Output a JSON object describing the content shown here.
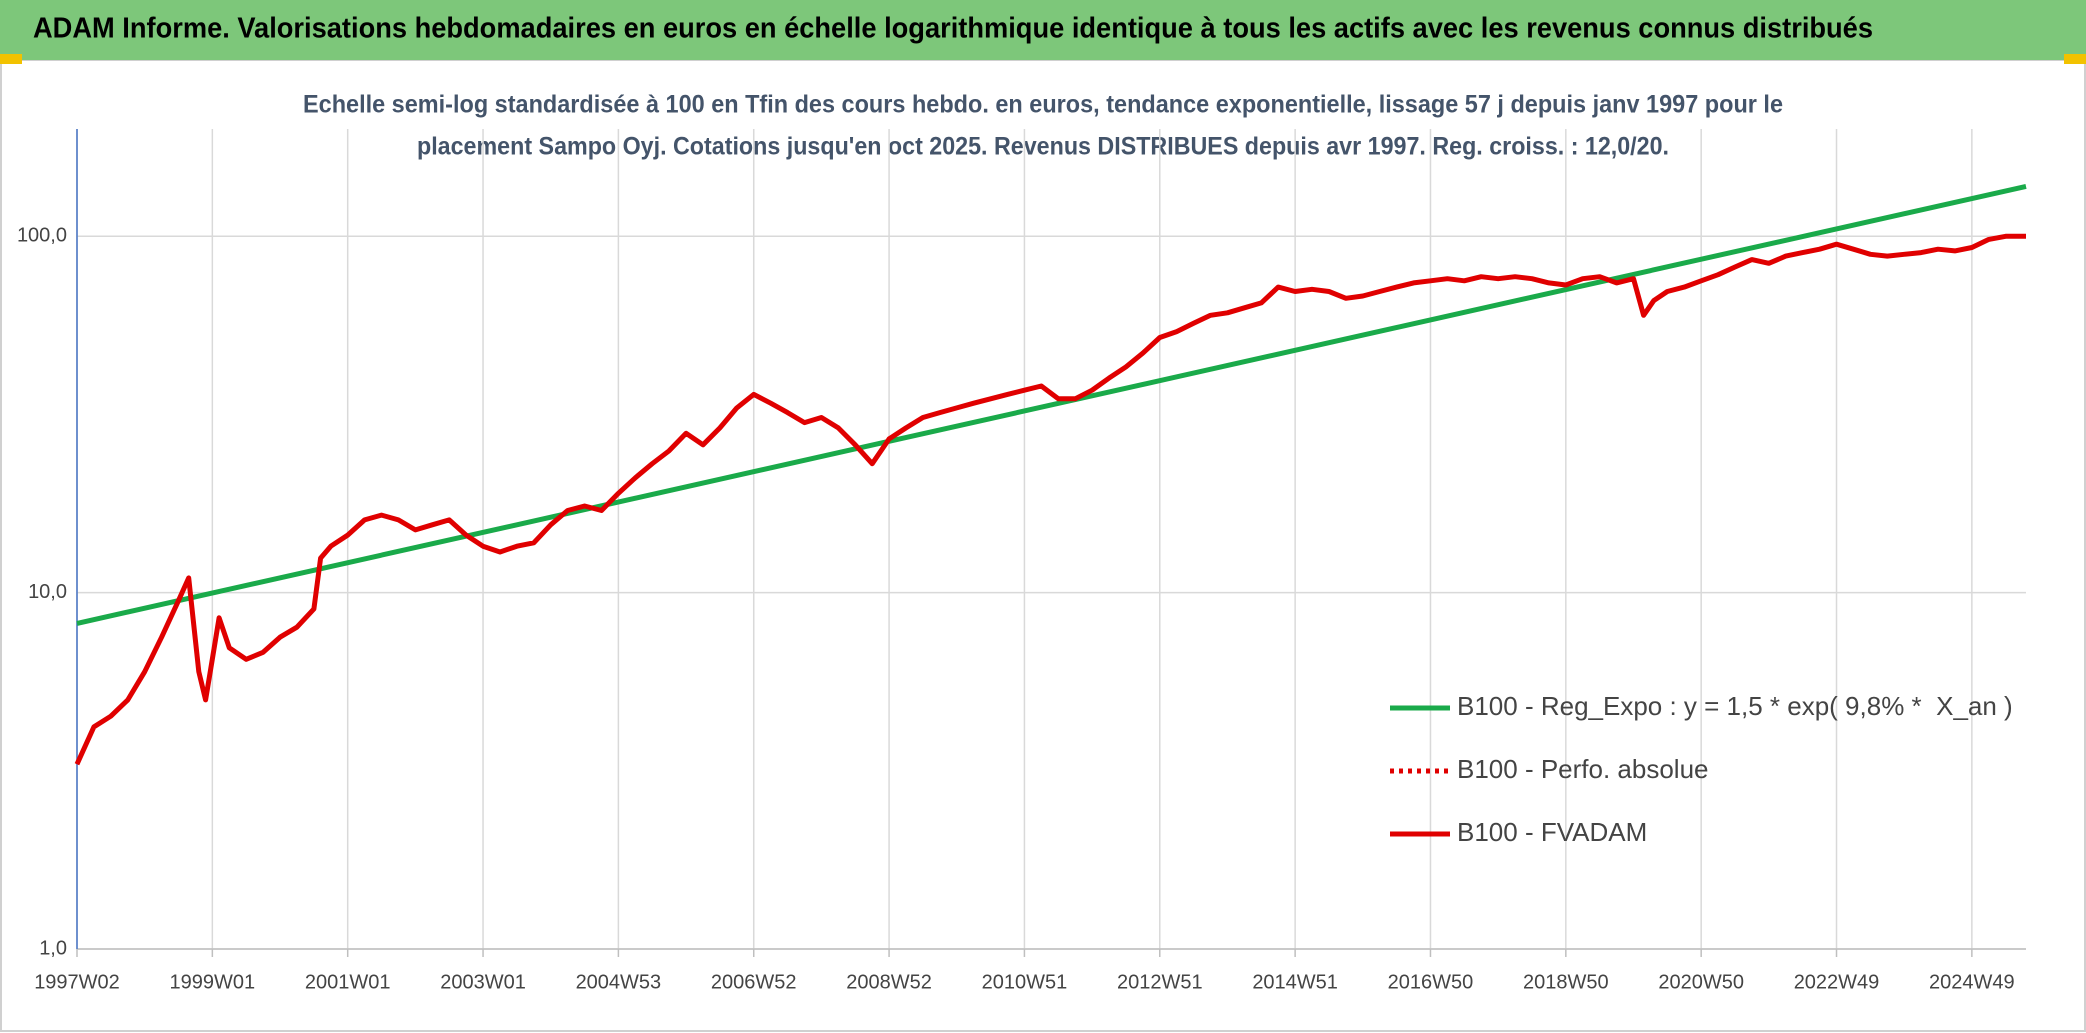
{
  "chart_data": {
    "type": "line",
    "title": "ADAM Informe. Valorisations hebdomadaires en euros en échelle logarithmique identique à tous les actifs avec les revenus connus distribués",
    "subtitle": [
      "Echelle semi-log standardisée à 100 en Tfin des cours hebdo. en euros, tendance exponentielle, lissage 57 j depuis janv 1997 pour le",
      "placement Sampo Oyj. Cotations jusqu'en oct 2025. Revenus DISTRIBUES depuis avr 1997. Reg. croiss. : 12,0/20."
    ],
    "log_scale": true,
    "grid": true,
    "legend": "right",
    "xlim": [
      1997.0,
      2025.8
    ],
    "xticks": [
      {
        "value": 1997.0,
        "label": "1997W02"
      },
      {
        "value": 1999.0,
        "label": "1999W01"
      },
      {
        "value": 2001.0,
        "label": "2001W01"
      },
      {
        "value": 2003.0,
        "label": "2003W01"
      },
      {
        "value": 2005.0,
        "label": "2004W53"
      },
      {
        "value": 2007.0,
        "label": "2006W52"
      },
      {
        "value": 2009.0,
        "label": "2008W52"
      },
      {
        "value": 2011.0,
        "label": "2010W51"
      },
      {
        "value": 2013.0,
        "label": "2012W51"
      },
      {
        "value": 2015.0,
        "label": "2014W51"
      },
      {
        "value": 2017.0,
        "label": "2016W50"
      },
      {
        "value": 2019.0,
        "label": "2018W50"
      },
      {
        "value": 2021.0,
        "label": "2020W50"
      },
      {
        "value": 2023.0,
        "label": "2022W49"
      },
      {
        "value": 2025.0,
        "label": "2024W49"
      }
    ],
    "ylim": [
      1,
      200
    ],
    "yticks": [
      {
        "value": 1,
        "label": "1,0"
      },
      {
        "value": 10,
        "label": "10,0"
      },
      {
        "value": 100,
        "label": "100,0"
      }
    ],
    "series": [
      {
        "name": "B100 - Reg_Expo : y = 1,5 * exp( 9,8% *  X_an )",
        "color": "#1aaa4a",
        "style": "solid",
        "x": [
          1997.0,
          2025.8
        ],
        "values": [
          8.2,
          138
        ]
      },
      {
        "name": "B100 - Perfo. absolue",
        "color": "#e00000",
        "style": "dotted",
        "x": [
          1997.0,
          1997.25,
          1997.5,
          1997.75,
          1998.0,
          1998.25,
          1998.5,
          1998.65,
          1998.8,
          1998.9,
          1999.0,
          1999.1,
          1999.25,
          1999.5,
          1999.75,
          2000.0,
          2000.25,
          2000.5,
          2000.6,
          2000.75,
          2001.0,
          2001.25,
          2001.5,
          2001.75,
          2002.0,
          2002.25,
          2002.5,
          2002.75,
          2003.0,
          2003.25,
          2003.5,
          2003.75,
          2004.0,
          2004.25,
          2004.5,
          2004.75,
          2005.0,
          2005.25,
          2005.5,
          2005.75,
          2006.0,
          2006.25,
          2006.5,
          2006.75,
          2007.0,
          2007.25,
          2007.5,
          2007.75,
          2008.0,
          2008.25,
          2008.5,
          2008.75,
          2009.0,
          2009.25,
          2009.5,
          2009.75,
          2010.0,
          2010.25,
          2010.5,
          2010.75,
          2011.0,
          2011.25,
          2011.5,
          2011.75,
          2012.0,
          2012.25,
          2012.5,
          2012.75,
          2013.0,
          2013.25,
          2013.5,
          2013.75,
          2014.0,
          2014.25,
          2014.5,
          2014.75,
          2015.0,
          2015.25,
          2015.5,
          2015.75,
          2016.0,
          2016.25,
          2016.5,
          2016.75,
          2017.0,
          2017.25,
          2017.5,
          2017.75,
          2018.0,
          2018.25,
          2018.5,
          2018.75,
          2019.0,
          2019.25,
          2019.5,
          2019.75,
          2020.0,
          2020.15,
          2020.3,
          2020.5,
          2020.75,
          2021.0,
          2021.25,
          2021.5,
          2021.75,
          2022.0,
          2022.25,
          2022.5,
          2022.75,
          2023.0,
          2023.25,
          2023.5,
          2023.75,
          2024.0,
          2024.25,
          2024.5,
          2024.75,
          2025.0,
          2025.25,
          2025.5,
          2025.8
        ],
        "values": [
          3.3,
          4.2,
          4.5,
          5.0,
          6.0,
          7.5,
          9.5,
          11,
          6.0,
          5.0,
          6.5,
          8.5,
          7.0,
          6.5,
          6.8,
          7.5,
          8.0,
          9.0,
          12.5,
          13.5,
          14.5,
          16,
          16.5,
          16,
          15,
          15.5,
          16,
          14.5,
          13.5,
          13,
          13.5,
          13.8,
          15.5,
          17,
          17.5,
          17,
          19,
          21,
          23,
          25,
          28,
          26,
          29,
          33,
          36,
          34,
          32,
          30,
          31,
          29,
          26,
          23,
          27,
          29,
          31,
          32,
          33,
          34,
          35,
          36,
          37,
          38,
          35,
          35,
          37,
          40,
          43,
          47,
          52,
          54,
          57,
          60,
          61,
          63,
          65,
          72,
          70,
          71,
          70,
          67,
          68,
          70,
          72,
          74,
          75,
          76,
          75,
          77,
          76,
          77,
          76,
          74,
          73,
          76,
          77,
          74,
          76,
          60,
          66,
          70,
          72,
          75,
          78,
          82,
          86,
          84,
          88,
          90,
          92,
          95,
          92,
          89,
          88,
          89,
          90,
          92,
          91,
          93,
          98,
          100,
          100
        ]
      },
      {
        "name": "B100 - FVADAM",
        "color": "#e00000",
        "style": "solid",
        "x": [
          1997.0,
          1997.25,
          1997.5,
          1997.75,
          1998.0,
          1998.25,
          1998.5,
          1998.65,
          1998.8,
          1998.9,
          1999.0,
          1999.1,
          1999.25,
          1999.5,
          1999.75,
          2000.0,
          2000.25,
          2000.5,
          2000.6,
          2000.75,
          2001.0,
          2001.25,
          2001.5,
          2001.75,
          2002.0,
          2002.25,
          2002.5,
          2002.75,
          2003.0,
          2003.25,
          2003.5,
          2003.75,
          2004.0,
          2004.25,
          2004.5,
          2004.75,
          2005.0,
          2005.25,
          2005.5,
          2005.75,
          2006.0,
          2006.25,
          2006.5,
          2006.75,
          2007.0,
          2007.25,
          2007.5,
          2007.75,
          2008.0,
          2008.25,
          2008.5,
          2008.75,
          2009.0,
          2009.25,
          2009.5,
          2009.75,
          2010.0,
          2010.25,
          2010.5,
          2010.75,
          2011.0,
          2011.25,
          2011.5,
          2011.75,
          2012.0,
          2012.25,
          2012.5,
          2012.75,
          2013.0,
          2013.25,
          2013.5,
          2013.75,
          2014.0,
          2014.25,
          2014.5,
          2014.75,
          2015.0,
          2015.25,
          2015.5,
          2015.75,
          2016.0,
          2016.25,
          2016.5,
          2016.75,
          2017.0,
          2017.25,
          2017.5,
          2017.75,
          2018.0,
          2018.25,
          2018.5,
          2018.75,
          2019.0,
          2019.25,
          2019.5,
          2019.75,
          2020.0,
          2020.15,
          2020.3,
          2020.5,
          2020.75,
          2021.0,
          2021.25,
          2021.5,
          2021.75,
          2022.0,
          2022.25,
          2022.5,
          2022.75,
          2023.0,
          2023.25,
          2023.5,
          2023.75,
          2024.0,
          2024.25,
          2024.5,
          2024.75,
          2025.0,
          2025.25,
          2025.5,
          2025.8
        ],
        "values": [
          3.3,
          4.2,
          4.5,
          5.0,
          6.0,
          7.5,
          9.5,
          11,
          6.0,
          5.0,
          6.5,
          8.5,
          7.0,
          6.5,
          6.8,
          7.5,
          8.0,
          9.0,
          12.5,
          13.5,
          14.5,
          16,
          16.5,
          16,
          15,
          15.5,
          16,
          14.5,
          13.5,
          13,
          13.5,
          13.8,
          15.5,
          17,
          17.5,
          17,
          19,
          21,
          23,
          25,
          28,
          26,
          29,
          33,
          36,
          34,
          32,
          30,
          31,
          29,
          26,
          23,
          27,
          29,
          31,
          32,
          33,
          34,
          35,
          36,
          37,
          38,
          35,
          35,
          37,
          40,
          43,
          47,
          52,
          54,
          57,
          60,
          61,
          63,
          65,
          72,
          70,
          71,
          70,
          67,
          68,
          70,
          72,
          74,
          75,
          76,
          75,
          77,
          76,
          77,
          76,
          74,
          73,
          76,
          77,
          74,
          76,
          60,
          66,
          70,
          72,
          75,
          78,
          82,
          86,
          84,
          88,
          90,
          92,
          95,
          92,
          89,
          88,
          89,
          90,
          92,
          91,
          93,
          98,
          100,
          100
        ]
      }
    ]
  }
}
